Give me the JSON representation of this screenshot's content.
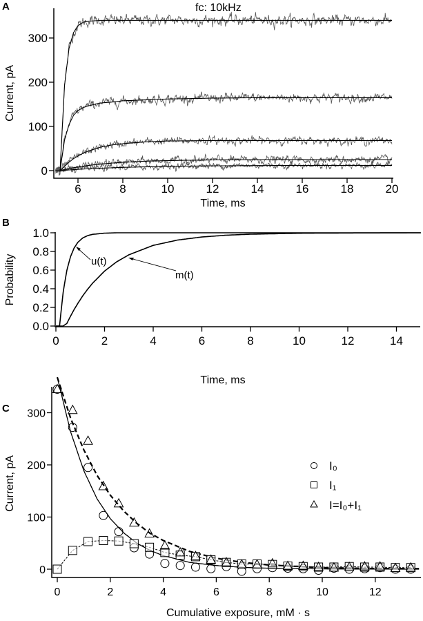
{
  "panels": {
    "A": {
      "label": "A",
      "annotation": "fc: 10kHz"
    },
    "B": {
      "label": "B",
      "annotations": {
        "u": "u(t)",
        "m": "m(t)"
      }
    },
    "C": {
      "label": "C"
    }
  },
  "chart_data": [
    {
      "panel": "A",
      "type": "line",
      "xlabel": "Time, ms",
      "ylabel": "Current, pA",
      "xlim": [
        5,
        20.1
      ],
      "ylim": [
        -15,
        365
      ],
      "xticks": [
        6,
        8,
        10,
        12,
        14,
        16,
        18,
        20
      ],
      "yticks": [
        0,
        100,
        200,
        300
      ],
      "grid": false,
      "series_style": "noisy current traces (gray) with overlaid fitted curves (black)",
      "x": [
        5,
        5.2,
        5.4,
        5.6,
        5.8,
        6.0,
        6.25,
        6.5,
        7.0,
        7.5,
        8.0,
        9.0,
        10.0,
        12.0,
        14.0,
        16.0,
        18.0,
        20.0
      ],
      "series": [
        {
          "values": [
            0,
            0,
            192,
            276,
            312,
            328,
            336,
            338,
            340,
            340,
            340,
            340,
            340,
            340,
            340,
            340,
            340,
            340
          ]
        },
        {
          "values": [
            0,
            0,
            69,
            104,
            125,
            136,
            143,
            147,
            153,
            155,
            158,
            160,
            162,
            164,
            165,
            165,
            165,
            165
          ]
        },
        {
          "values": [
            0,
            0,
            10,
            19,
            27,
            33,
            40,
            45,
            53,
            58,
            61,
            65,
            67,
            68,
            68,
            68,
            68,
            68
          ]
        },
        {
          "values": [
            0,
            0,
            2.4,
            4.5,
            6.5,
            8.2,
            10.2,
            11.9,
            14.8,
            17,
            18.8,
            21.3,
            22.7,
            24.2,
            24.7,
            24.9,
            25,
            25
          ]
        },
        {
          "values": [
            0,
            0,
            0.8,
            1.5,
            2.2,
            2.8,
            3.6,
            4.3,
            5.4,
            6.4,
            7.3,
            8.6,
            9.6,
            10.8,
            11.4,
            11.7,
            11.8,
            11.9
          ]
        }
      ]
    },
    {
      "panel": "B",
      "type": "line",
      "xlabel": "Time, ms",
      "ylabel": "Probability",
      "xlim": [
        0,
        15
      ],
      "ylim": [
        0,
        1.0
      ],
      "xticks": [
        0,
        2,
        4,
        6,
        8,
        10,
        12,
        14
      ],
      "yticks": [
        "0.0",
        "0.2",
        "0.4",
        "0.6",
        "0.8",
        "1.0"
      ],
      "grid": false,
      "x": [
        0,
        0.15,
        0.3,
        0.45,
        0.6,
        0.75,
        0.9,
        1.1,
        1.3,
        1.5,
        2,
        2.5,
        3,
        4,
        5,
        6,
        7,
        8,
        10,
        12,
        15
      ],
      "series": [
        {
          "name": "u(t)",
          "values": [
            0,
            0,
            0.365,
            0.597,
            0.744,
            0.837,
            0.897,
            0.944,
            0.969,
            0.983,
            0.996,
            1,
            1,
            1,
            1,
            1,
            1,
            1,
            1,
            1,
            1
          ]
        },
        {
          "name": "m(t)",
          "values": [
            0,
            0,
            0,
            0.028,
            0.105,
            0.177,
            0.242,
            0.322,
            0.393,
            0.457,
            0.589,
            0.689,
            0.764,
            0.865,
            0.922,
            0.955,
            0.974,
            0.985,
            0.995,
            0.998,
            1.0
          ]
        }
      ]
    },
    {
      "panel": "C",
      "type": "scatter",
      "xlabel": "Cumulative exposure, mM · s",
      "ylabel": "Current, pA",
      "xlim": [
        -0.2,
        13.7
      ],
      "ylim": [
        -15,
        365
      ],
      "xticks": [
        0,
        2,
        4,
        6,
        8,
        10,
        12
      ],
      "yticks": [
        0,
        100,
        200,
        300
      ],
      "grid": false,
      "legend_position": "right",
      "x": [
        0,
        0.58,
        1.16,
        1.74,
        2.32,
        2.9,
        3.48,
        4.06,
        4.64,
        5.22,
        5.8,
        6.38,
        6.96,
        7.54,
        8.12,
        8.7,
        9.28,
        9.86,
        10.44,
        11.02,
        11.6,
        12.18,
        12.76,
        13.34
      ],
      "series": [
        {
          "name": "I₀",
          "marker": "circle",
          "values": [
            345,
            272,
            195,
            103,
            72,
            41,
            29,
            11,
            7,
            4,
            1,
            5,
            -4,
            1,
            3,
            2,
            1,
            -2,
            2,
            0,
            1,
            3,
            0,
            0
          ]
        },
        {
          "name": "I₁",
          "marker": "square",
          "values": [
            0,
            36,
            53,
            55,
            54,
            49,
            42,
            32,
            27,
            24,
            18,
            13,
            10,
            10,
            9,
            6,
            5,
            4,
            4,
            5,
            4,
            4,
            3,
            3
          ]
        },
        {
          "name": "I=I₀+I₁",
          "marker": "triangle",
          "values": [
            345,
            305,
            246,
            159,
            126,
            89,
            68,
            45,
            32,
            25,
            18,
            13,
            9,
            9,
            11,
            6,
            6,
            4,
            3,
            4,
            5,
            5,
            2,
            3
          ]
        }
      ],
      "fits": {
        "x": [
          0,
          0.5,
          1,
          1.5,
          2,
          2.5,
          3,
          3.5,
          4,
          5,
          6,
          7,
          8,
          10,
          12,
          13.7
        ],
        "I0_solid": [
          368,
          264,
          189,
          135,
          97,
          70,
          50,
          36,
          26,
          13,
          7,
          3.5,
          1.8,
          0.5,
          0.1,
          0
        ],
        "I_dashed": [
          368,
          290,
          229,
          180,
          142,
          112,
          88,
          69,
          55,
          34,
          21,
          13,
          8,
          3,
          1.2,
          1
        ]
      }
    }
  ]
}
